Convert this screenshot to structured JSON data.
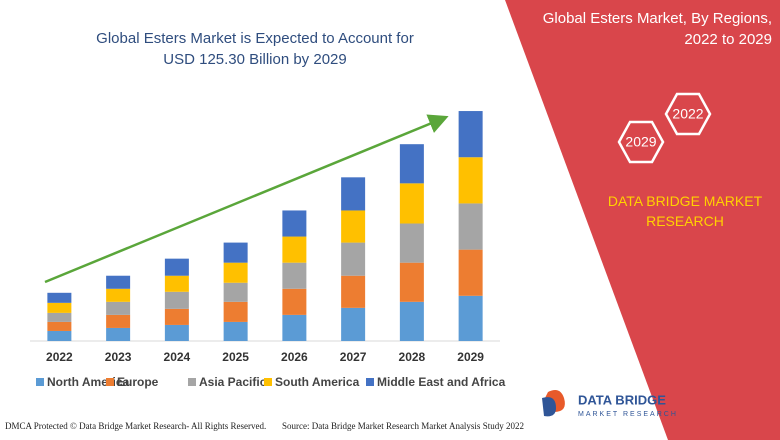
{
  "chart_data": {
    "type": "stacked_bar",
    "title": "Global Esters Market is Expected to Account for USD 125.30 Billion by 2029",
    "categories": [
      "2022",
      "2023",
      "2024",
      "2025",
      "2026",
      "2027",
      "2028",
      "2029"
    ],
    "series": [
      {
        "name": "North America",
        "color": "#5b9bd5",
        "values": [
          10,
          13,
          16,
          19,
          26,
          33,
          39,
          45
        ]
      },
      {
        "name": "Europe",
        "color": "#ed7d31",
        "values": [
          9,
          13,
          16,
          20,
          26,
          32,
          39,
          46
        ]
      },
      {
        "name": "Asia Pacific",
        "color": "#a5a5a5",
        "values": [
          9,
          13,
          17,
          19,
          26,
          33,
          39,
          46
        ]
      },
      {
        "name": "South America",
        "color": "#ffc000",
        "values": [
          10,
          13,
          16,
          20,
          26,
          32,
          40,
          46
        ]
      },
      {
        "name": "Middle East and Africa",
        "color": "#4472c4",
        "values": [
          10,
          13,
          17,
          20,
          26,
          33,
          39,
          46
        ]
      }
    ],
    "ylim": [
      0,
      240
    ]
  },
  "panel": {
    "title": "Global Esters Market, By Regions, 2022 to 2029",
    "hex_labels": [
      "2022",
      "2029"
    ],
    "brand": "DATA BRIDGE MARKET RESEARCH"
  },
  "logo": {
    "name": "DATA BRIDGE",
    "tagline": "MARKET RESEARCH"
  },
  "footer": {
    "copyright": "DMCA Protected © Data Bridge Market Research- All Rights Reserved.",
    "source": "Source: Data Bridge Market Research Market Analysis Study 2022"
  }
}
